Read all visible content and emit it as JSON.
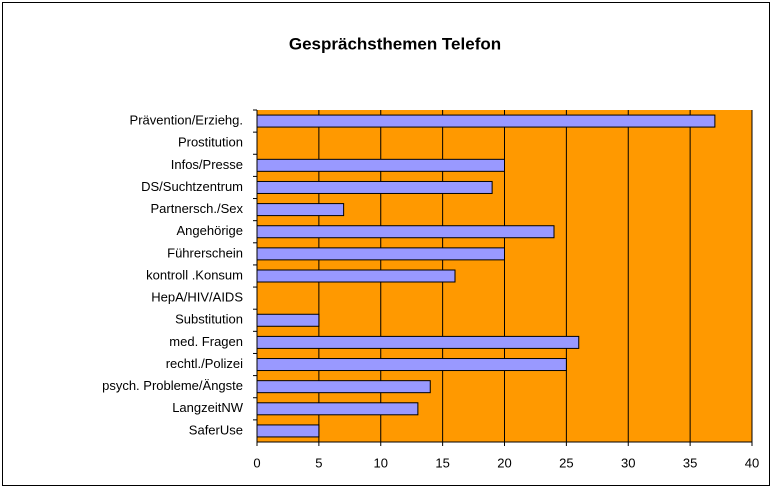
{
  "chart_data": {
    "type": "bar",
    "orientation": "horizontal",
    "title": "Gesprächsthemen Telefon",
    "categories": [
      "Prävention/Erziehg.",
      "Prostitution",
      "Infos/Presse",
      "DS/Suchtzentrum",
      "Partnersch./Sex",
      "Angehörige",
      "Führerschein",
      "kontroll .Konsum",
      "HepA/HIV/AIDS",
      "Substitution",
      "med. Fragen",
      "rechtl./Polizei",
      "psych. Probleme/Ängste",
      "LangzeitNW",
      "SaferUse"
    ],
    "values": [
      37,
      0,
      20,
      19,
      7,
      24,
      20,
      16,
      0,
      5,
      26,
      25,
      14,
      13,
      5
    ],
    "color": "#9999ff",
    "background": "#ff9900",
    "xlim": [
      0,
      40
    ],
    "xticks": [
      0,
      5,
      10,
      15,
      20,
      25,
      30,
      35,
      40
    ],
    "grid": true
  }
}
